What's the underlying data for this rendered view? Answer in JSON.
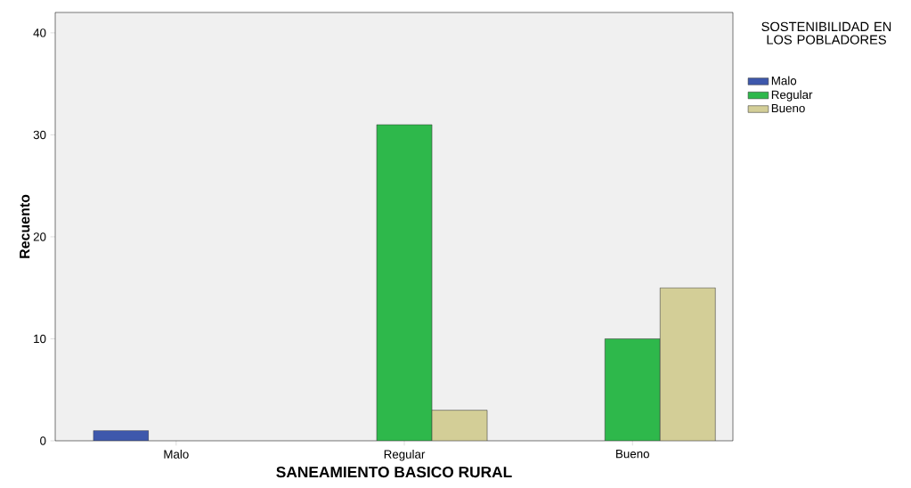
{
  "chart_data": {
    "type": "bar",
    "xlabel": "SANEAMIENTO BASICO RURAL",
    "ylabel": "Recuento",
    "legend_title": "SOSTENIBILIDAD EN LOS POBLADORES",
    "categories": [
      "Malo",
      "Regular",
      "Bueno"
    ],
    "series": [
      {
        "name": "Malo",
        "color": "#3e58ac",
        "values": [
          1,
          null,
          null
        ]
      },
      {
        "name": "Regular",
        "color": "#2eb84b",
        "values": [
          null,
          31,
          10
        ]
      },
      {
        "name": "Bueno",
        "color": "#d3ce97",
        "values": [
          null,
          3,
          15
        ]
      }
    ],
    "ylim": [
      0,
      42
    ],
    "yticks": [
      0,
      10,
      20,
      30,
      40
    ],
    "grid": false,
    "legend": "right"
  }
}
